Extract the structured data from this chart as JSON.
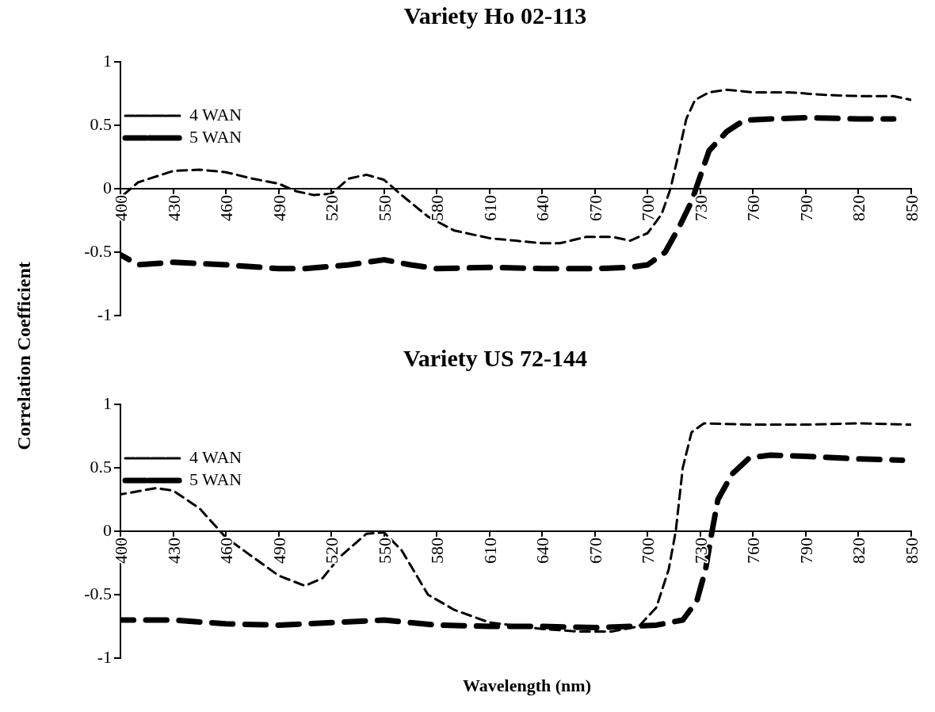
{
  "chart_data": [
    {
      "type": "line",
      "title": "Variety Ho 02-113",
      "ylabel": "Correlation Coefficient",
      "xlim": [
        400,
        850
      ],
      "xticks": [
        400,
        430,
        460,
        490,
        520,
        550,
        580,
        610,
        640,
        670,
        700,
        730,
        760,
        790,
        820,
        850
      ],
      "ylim": [
        -1,
        1
      ],
      "yticks": [
        -1,
        -0.5,
        0,
        0.5,
        1
      ],
      "grid": false,
      "legend": "top",
      "line_style": "dashed",
      "marker": "none",
      "series": [
        {
          "name": "4 WAN",
          "color": "#000000",
          "x": [
            400,
            410,
            430,
            445,
            460,
            475,
            490,
            500,
            510,
            520,
            530,
            540,
            550,
            560,
            575,
            590,
            610,
            625,
            640,
            650,
            665,
            680,
            690,
            700,
            708,
            713,
            718,
            722,
            727,
            735,
            745,
            760,
            780,
            800,
            820,
            840,
            850
          ],
          "values": [
            -0.07,
            0.05,
            0.14,
            0.15,
            0.13,
            0.08,
            0.04,
            -0.02,
            -0.05,
            -0.04,
            0.08,
            0.11,
            0.07,
            -0.05,
            -0.22,
            -0.33,
            -0.39,
            -0.41,
            -0.43,
            -0.43,
            -0.38,
            -0.38,
            -0.41,
            -0.35,
            -0.2,
            0,
            0.3,
            0.55,
            0.7,
            0.76,
            0.78,
            0.76,
            0.76,
            0.74,
            0.73,
            0.73,
            0.7
          ]
        },
        {
          "name": "5 WAN",
          "color": "#000000",
          "x": [
            400,
            410,
            430,
            460,
            490,
            505,
            530,
            550,
            565,
            580,
            610,
            640,
            670,
            690,
            700,
            710,
            718,
            725,
            730,
            735,
            745,
            755,
            770,
            790,
            820,
            840
          ],
          "values": [
            -0.52,
            -0.6,
            -0.58,
            -0.6,
            -0.63,
            -0.63,
            -0.6,
            -0.56,
            -0.6,
            -0.63,
            -0.62,
            -0.63,
            -0.63,
            -0.62,
            -0.6,
            -0.5,
            -0.3,
            -0.1,
            0.1,
            0.3,
            0.45,
            0.54,
            0.55,
            0.56,
            0.55,
            0.55
          ]
        }
      ]
    },
    {
      "type": "line",
      "title": "Variety US 72-144",
      "xlabel": "Wavelength (nm)",
      "xlim": [
        400,
        850
      ],
      "xticks": [
        400,
        430,
        460,
        490,
        520,
        550,
        580,
        610,
        640,
        670,
        700,
        730,
        760,
        790,
        820,
        850
      ],
      "ylim": [
        -1,
        1
      ],
      "yticks": [
        -1,
        -0.5,
        0,
        0.5,
        1
      ],
      "grid": false,
      "legend": "top",
      "line_style": "dashed",
      "marker": "none",
      "series": [
        {
          "name": "4 WAN",
          "color": "#000000",
          "x": [
            400,
            420,
            430,
            445,
            460,
            475,
            490,
            505,
            515,
            525,
            540,
            550,
            560,
            575,
            590,
            610,
            640,
            660,
            680,
            695,
            705,
            712,
            716,
            720,
            725,
            732,
            760,
            790,
            820,
            850
          ],
          "values": [
            0.29,
            0.34,
            0.32,
            0.18,
            -0.05,
            -0.2,
            -0.35,
            -0.43,
            -0.37,
            -0.2,
            -0.02,
            -0.01,
            -0.15,
            -0.5,
            -0.62,
            -0.72,
            -0.77,
            -0.79,
            -0.79,
            -0.75,
            -0.6,
            -0.3,
            0,
            0.5,
            0.78,
            0.85,
            0.84,
            0.84,
            0.85,
            0.84
          ]
        },
        {
          "name": "5 WAN",
          "color": "#000000",
          "x": [
            400,
            430,
            460,
            490,
            520,
            550,
            580,
            610,
            640,
            670,
            690,
            705,
            720,
            728,
            733,
            736,
            740,
            748,
            758,
            770,
            790,
            820,
            845
          ],
          "values": [
            -0.7,
            -0.7,
            -0.73,
            -0.74,
            -0.72,
            -0.7,
            -0.74,
            -0.75,
            -0.75,
            -0.76,
            -0.75,
            -0.74,
            -0.7,
            -0.55,
            -0.3,
            -0.05,
            0.25,
            0.45,
            0.58,
            0.6,
            0.59,
            0.57,
            0.56
          ]
        }
      ]
    }
  ]
}
